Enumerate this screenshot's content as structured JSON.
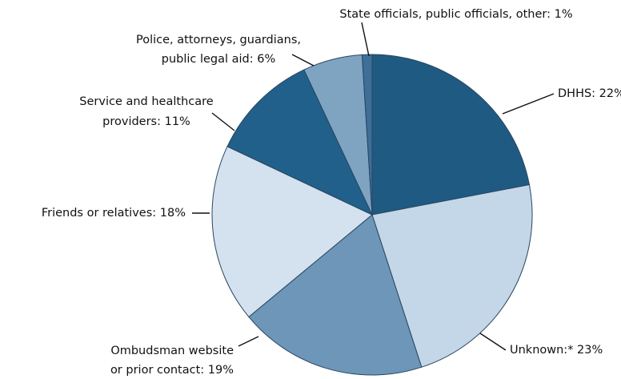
{
  "chart_data": {
    "type": "pie",
    "values": [
      22,
      23,
      19,
      18,
      11,
      6,
      1
    ],
    "value_labels": [
      [
        "DHHS: 22%"
      ],
      [
        "Unknown:* 23%"
      ],
      [
        "Ombudsman website",
        "or prior contact: 19%"
      ],
      [
        "Friends or relatives: 18%"
      ],
      [
        "Service and healthcare",
        "providers: 11%"
      ],
      [
        "Police, attorneys, guardians,",
        "public legal aid: 6%"
      ],
      [
        "State officials, public officials, other: 1%"
      ]
    ],
    "colors": [
      "#1f5a82",
      "#c3d7e8",
      "#6d96b9",
      "#d3e2ee",
      "#20608a",
      "#7ea4c2",
      "#3d6f98"
    ]
  }
}
